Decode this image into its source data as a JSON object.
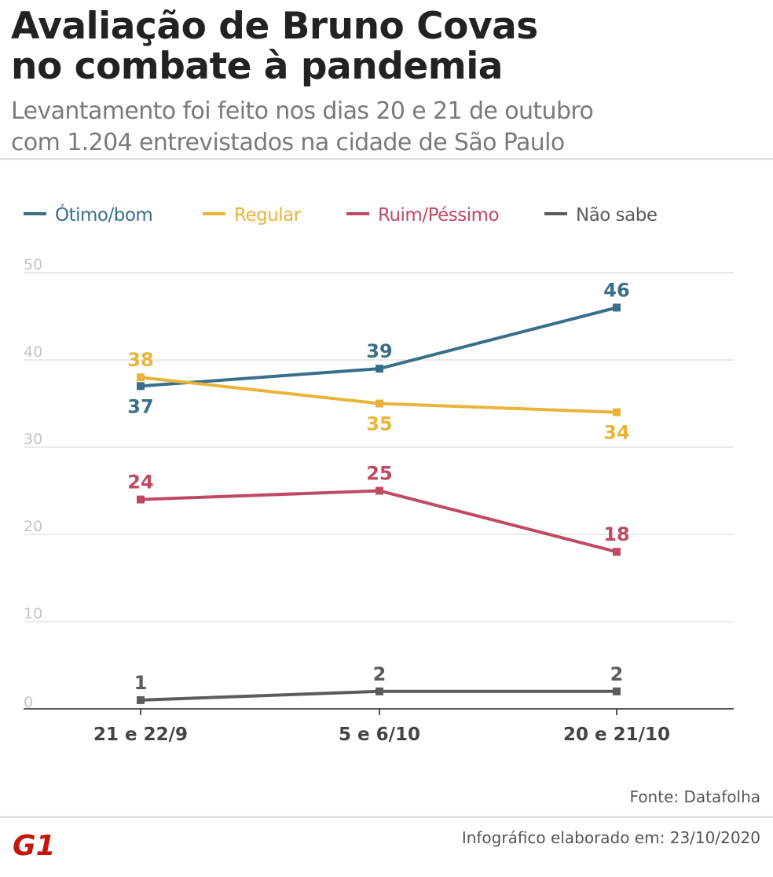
{
  "header": {
    "title_line1": "Avaliação de Bruno Covas",
    "title_line2": "no combate à pandemia",
    "subtitle_line1": "Levantamento foi feito nos dias 20 e 21 de outubro",
    "subtitle_line2": "com 1.204 entrevistados na cidade de São Paulo"
  },
  "footer": {
    "source": "Fonte: Datafolha",
    "credit": "Infográfico elaborado em: 23/10/2020",
    "logo_text": "G1"
  },
  "colors": {
    "otimo": "#3a6f8a",
    "regular": "#e8b53a",
    "ruim": "#c04a64",
    "nao_sabe": "#5c5c5c",
    "grid": "#e3e3e3",
    "axis": "#555555",
    "tick": "#c4c4c4",
    "logo": "#c4170c"
  },
  "chart_data": {
    "type": "line",
    "title": "Avaliação de Bruno Covas no combate à pandemia",
    "xlabel": "",
    "ylabel": "",
    "ylim": [
      0,
      50
    ],
    "yticks": [
      0,
      10,
      20,
      30,
      40,
      50
    ],
    "grid": true,
    "legend_position": "top",
    "categories": [
      "21 e 22/9",
      "5 e 6/10",
      "20 e 21/10"
    ],
    "series": [
      {
        "name": "Ótimo/bom",
        "key": "otimo",
        "values": [
          37,
          39,
          46
        ],
        "label_pos": [
          "below",
          "above",
          "above"
        ]
      },
      {
        "name": "Regular",
        "key": "regular",
        "values": [
          38,
          35,
          34
        ],
        "label_pos": [
          "above",
          "below",
          "below"
        ]
      },
      {
        "name": "Ruim/Péssimo",
        "key": "ruim",
        "values": [
          24,
          25,
          18
        ],
        "label_pos": [
          "above",
          "above",
          "above"
        ]
      },
      {
        "name": "Não sabe",
        "key": "nao_sabe",
        "values": [
          1,
          2,
          2
        ],
        "label_pos": [
          "above",
          "above",
          "above"
        ]
      }
    ]
  }
}
